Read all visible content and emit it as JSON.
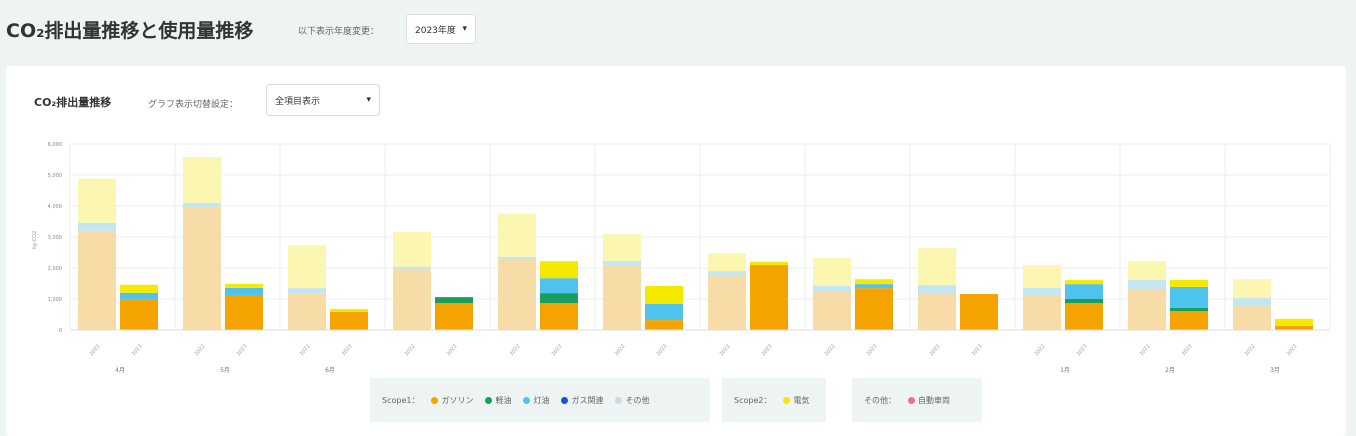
{
  "header": {
    "title": "CO₂排出量推移と使用量推移",
    "year_label": "以下表示年度変更：",
    "year_value": "2023年度"
  },
  "card": {
    "title": "CO₂排出量推移",
    "graph_label": "グラフ表示切替設定：",
    "graph_value": "全項目表示"
  },
  "legend": {
    "groups": [
      {
        "title": "Scope1：",
        "items": [
          {
            "label": "ガソリン",
            "color": "#f5a300"
          },
          {
            "label": "軽油",
            "color": "#1a9e5c"
          },
          {
            "label": "灯油",
            "color": "#4ec3ee"
          },
          {
            "label": "ガス関連",
            "color": "#1f4fd6"
          },
          {
            "label": "その他",
            "color": "#c8dde0"
          }
        ]
      },
      {
        "title": "Scope2：",
        "items": [
          {
            "label": "電気",
            "color": "#f5e900"
          }
        ]
      },
      {
        "title": "その他：",
        "items": [
          {
            "label": "自動車両",
            "color": "#f07080"
          }
        ]
      }
    ]
  },
  "chart_data": {
    "type": "bar",
    "stacked": true,
    "ylabel": "kg-CO2",
    "ylim": [
      0,
      6000
    ],
    "yticks": [
      "0",
      "1,000",
      "2,000",
      "3,000",
      "4,000",
      "5,000",
      "6,000"
    ],
    "grid": true,
    "categories": [
      "4月",
      "5月",
      "6月",
      "",
      "",
      "",
      "",
      "",
      "",
      "1月",
      "2月",
      "3月"
    ],
    "bar_labels": [
      "2022",
      "2023"
    ],
    "segments": [
      "ガソリン",
      "軽油",
      "灯油",
      "ガス関連",
      "その他",
      "電気"
    ],
    "values": [
      [
        [
          3200,
          0,
          260,
          0,
          0,
          1420
        ],
        [
          970,
          0,
          230,
          0,
          0,
          260
        ]
      ],
      [
        [
          3970,
          0,
          130,
          0,
          0,
          1480
        ],
        [
          1130,
          0,
          230,
          0,
          0,
          130
        ]
      ],
      [
        [
          1190,
          0,
          160,
          0,
          0,
          1390
        ],
        [
          580,
          0,
          0,
          0,
          0,
          100
        ]
      ],
      [
        [
          1940,
          0,
          100,
          0,
          0,
          1130
        ],
        [
          870,
          190,
          0,
          0,
          0,
          0
        ]
      ],
      [
        [
          2260,
          0,
          100,
          0,
          0,
          1390
        ],
        [
          870,
          320,
          480,
          0,
          0,
          550
        ]
      ],
      [
        [
          2100,
          0,
          130,
          0,
          0,
          870
        ],
        [
          320,
          0,
          520,
          0,
          0,
          580
        ]
      ],
      [
        [
          1740,
          0,
          160,
          0,
          0,
          580
        ],
        [
          2100,
          0,
          0,
          0,
          0,
          100
        ]
      ],
      [
        [
          1230,
          0,
          190,
          0,
          0,
          900
        ],
        [
          1350,
          0,
          130,
          0,
          0,
          160
        ]
      ],
      [
        [
          1160,
          0,
          290,
          0,
          0,
          1190
        ],
        [
          1160,
          0,
          0,
          0,
          0,
          0
        ]
      ],
      [
        [
          1100,
          0,
          260,
          0,
          0,
          740
        ],
        [
          870,
          130,
          480,
          0,
          0,
          130
        ]
      ],
      [
        [
          1290,
          0,
          320,
          0,
          0,
          610
        ],
        [
          610,
          100,
          680,
          0,
          0,
          230
        ]
      ],
      [
        [
          770,
          0,
          260,
          0,
          0,
          610
        ],
        [
          130,
          0,
          0,
          0,
          0,
          230
        ]
      ]
    ]
  }
}
